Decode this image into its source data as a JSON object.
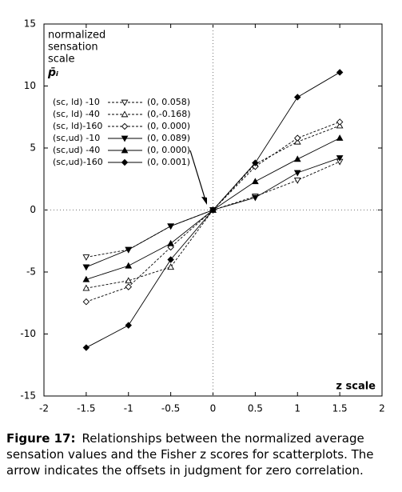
{
  "chart_data": {
    "type": "line",
    "ylabel": [
      "normalized",
      "sensation",
      "scale"
    ],
    "ylabel_symbol": "p̄ᵢ",
    "xlabel": "z scale",
    "x": [
      -1.5,
      -1,
      -0.5,
      0,
      0.5,
      1,
      1.5
    ],
    "xlim": [
      -2,
      2
    ],
    "xticks": [
      -2,
      -1.5,
      -1,
      -0.5,
      0,
      0.5,
      1,
      1.5,
      2
    ],
    "ylim": [
      -15,
      15
    ],
    "yticks": [
      -15,
      -10,
      -5,
      0,
      5,
      10,
      15
    ],
    "zero_lines": true,
    "series": [
      {
        "name": "(sc, ld) -10",
        "offset": "(0, 0.058)",
        "color": "#000",
        "marker": "triangle-down",
        "filled": false,
        "dashed": true,
        "values": [
          -3.8,
          -3.2,
          -1.3,
          0,
          1.1,
          2.4,
          3.9
        ]
      },
      {
        "name": "(sc, ld) -40",
        "offset": "(0,-0.168)",
        "color": "#000",
        "marker": "triangle-up",
        "filled": false,
        "dashed": true,
        "values": [
          -6.3,
          -5.7,
          -4.6,
          0,
          3.7,
          5.5,
          6.8
        ]
      },
      {
        "name": "(sc, ld)-160",
        "offset": "(0, 0.000)",
        "color": "#000",
        "marker": "diamond",
        "filled": false,
        "dashed": true,
        "values": [
          -7.4,
          -6.2,
          -3.0,
          0,
          3.5,
          5.8,
          7.1
        ]
      },
      {
        "name": "(sc,ud) -10",
        "offset": "(0, 0.089)",
        "color": "#000",
        "marker": "triangle-down",
        "filled": true,
        "dashed": false,
        "values": [
          -4.6,
          -3.2,
          -1.3,
          0,
          1.0,
          3.0,
          4.2
        ]
      },
      {
        "name": "(sc,ud) -40",
        "offset": "(0, 0.000)",
        "color": "#000",
        "marker": "triangle-up",
        "filled": true,
        "dashed": false,
        "values": [
          -5.6,
          -4.5,
          -2.7,
          0,
          2.3,
          4.1,
          5.8
        ]
      },
      {
        "name": "(sc,ud)-160",
        "offset": "(0, 0.001)",
        "color": "#000",
        "marker": "diamond",
        "filled": true,
        "dashed": false,
        "values": [
          -11.1,
          -9.3,
          -4.0,
          0,
          3.8,
          9.1,
          11.1
        ]
      }
    ]
  },
  "caption": {
    "label": "Figure 17:",
    "text": "Relationships between the normalized average sensation values and the Fisher z scores for scatterplots. The arrow indicates the offsets in judgment for zero correlation."
  }
}
